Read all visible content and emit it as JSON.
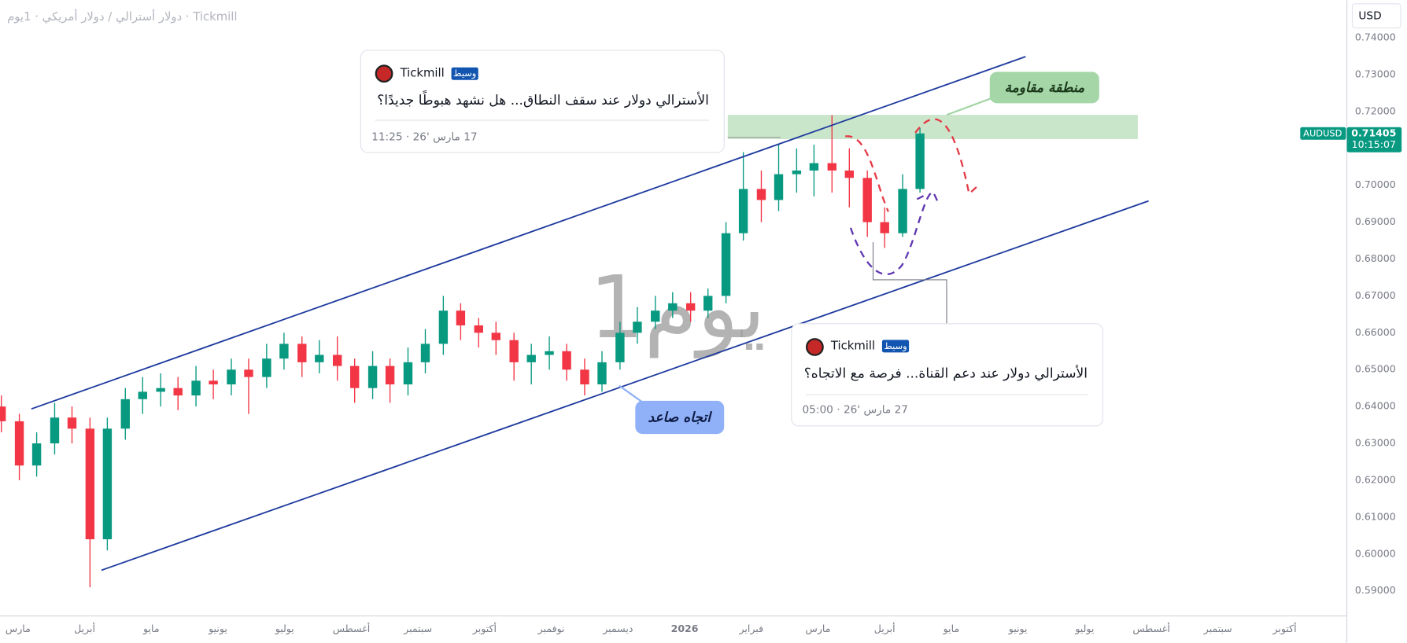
{
  "header": {
    "title": "دولار أسترالي / دولار أمريكي · 1يوم · Tickmill",
    "currency": "USD"
  },
  "chart_data": {
    "type": "candlestick",
    "symbol": "AUDUSD",
    "countdown": "10:15:07",
    "watermark": "1يوم",
    "up_color": "#089981",
    "down_color": "#f23645",
    "x": [
      -0.25,
      0.02,
      0.28,
      0.55,
      0.81,
      1.08,
      1.34,
      1.61,
      1.87,
      2.14,
      2.4,
      2.67,
      2.93,
      3.2,
      3.46,
      3.73,
      3.99,
      4.26,
      4.52,
      4.79,
      5.05,
      5.32,
      5.58,
      5.85,
      6.11,
      6.38,
      6.64,
      6.91,
      7.17,
      7.44,
      7.7,
      7.97,
      8.23,
      8.5,
      8.76,
      9.03,
      9.29,
      9.56,
      9.82,
      10.09,
      10.35,
      10.62,
      10.88,
      11.15,
      11.41,
      11.68,
      11.94,
      12.21,
      12.47,
      12.74,
      13.0,
      13.27,
      13.53
    ],
    "open": [
      0.64,
      0.636,
      0.624,
      0.63,
      0.637,
      0.634,
      0.604,
      0.634,
      0.642,
      0.644,
      0.645,
      0.643,
      0.647,
      0.646,
      0.65,
      0.648,
      0.653,
      0.657,
      0.652,
      0.654,
      0.651,
      0.645,
      0.651,
      0.646,
      0.652,
      0.657,
      0.666,
      0.662,
      0.66,
      0.658,
      0.652,
      0.654,
      0.655,
      0.65,
      0.646,
      0.652,
      0.66,
      0.663,
      0.666,
      0.668,
      0.666,
      0.67,
      0.687,
      0.699,
      0.696,
      0.703,
      0.704,
      0.706,
      0.704,
      0.702,
      0.69,
      0.687,
      0.699
    ],
    "high": [
      0.643,
      0.638,
      0.633,
      0.641,
      0.64,
      0.637,
      0.637,
      0.645,
      0.648,
      0.649,
      0.648,
      0.651,
      0.65,
      0.653,
      0.653,
      0.657,
      0.66,
      0.659,
      0.658,
      0.659,
      0.653,
      0.655,
      0.653,
      0.656,
      0.661,
      0.67,
      0.668,
      0.664,
      0.663,
      0.66,
      0.657,
      0.659,
      0.657,
      0.653,
      0.655,
      0.663,
      0.667,
      0.67,
      0.671,
      0.671,
      0.672,
      0.69,
      0.709,
      0.704,
      0.711,
      0.71,
      0.711,
      0.719,
      0.71,
      0.704,
      0.694,
      0.703,
      0.7155
    ],
    "low": [
      0.633,
      0.62,
      0.621,
      0.627,
      0.63,
      0.591,
      0.601,
      0.631,
      0.638,
      0.64,
      0.639,
      0.64,
      0.642,
      0.643,
      0.638,
      0.645,
      0.65,
      0.648,
      0.649,
      0.647,
      0.641,
      0.642,
      0.641,
      0.643,
      0.649,
      0.654,
      0.658,
      0.656,
      0.654,
      0.647,
      0.646,
      0.65,
      0.647,
      0.643,
      0.644,
      0.65,
      0.657,
      0.661,
      0.664,
      0.663,
      0.664,
      0.668,
      0.685,
      0.69,
      0.693,
      0.698,
      0.697,
      0.698,
      0.694,
      0.686,
      0.683,
      0.686,
      0.698
    ],
    "close": [
      0.636,
      0.624,
      0.63,
      0.637,
      0.634,
      0.604,
      0.634,
      0.642,
      0.644,
      0.645,
      0.643,
      0.647,
      0.646,
      0.65,
      0.648,
      0.653,
      0.657,
      0.652,
      0.654,
      0.651,
      0.645,
      0.651,
      0.646,
      0.652,
      0.657,
      0.666,
      0.662,
      0.66,
      0.658,
      0.652,
      0.654,
      0.655,
      0.65,
      0.646,
      0.652,
      0.66,
      0.663,
      0.666,
      0.668,
      0.666,
      0.67,
      0.687,
      0.699,
      0.696,
      0.703,
      0.704,
      0.706,
      0.704,
      0.702,
      0.69,
      0.687,
      0.699,
      0.71405
    ],
    "xlim": [
      -0.27,
      19.92
    ],
    "xticks": [
      {
        "value": 0,
        "label": "مارس"
      },
      {
        "value": 1,
        "label": "أبريل"
      },
      {
        "value": 2,
        "label": "مايو"
      },
      {
        "value": 3,
        "label": "يونيو"
      },
      {
        "value": 4,
        "label": "يوليو"
      },
      {
        "value": 5,
        "label": "أغسطس"
      },
      {
        "value": 6,
        "label": "سبتمبر"
      },
      {
        "value": 7,
        "label": "أكتوبر"
      },
      {
        "value": 8,
        "label": "نوفمبر"
      },
      {
        "value": 9,
        "label": "ديسمبر"
      },
      {
        "value": 10,
        "label": "2026"
      },
      {
        "value": 11,
        "label": "فبراير"
      },
      {
        "value": 12,
        "label": "مارس"
      },
      {
        "value": 13,
        "label": "أبريل"
      },
      {
        "value": 14,
        "label": "مايو"
      },
      {
        "value": 15,
        "label": "يونيو"
      },
      {
        "value": 16,
        "label": "يوليو"
      },
      {
        "value": 17,
        "label": "أغسطس"
      },
      {
        "value": 18,
        "label": "سبتمبر"
      },
      {
        "value": 19,
        "label": "أكتوبر"
      }
    ],
    "ylim": [
      0.5832,
      0.7502
    ],
    "yticks": [
      {
        "value": 0.59,
        "label": "0.59000"
      },
      {
        "value": 0.6,
        "label": "0.60000"
      },
      {
        "value": 0.61,
        "label": "0.61000"
      },
      {
        "value": 0.62,
        "label": "0.62000"
      },
      {
        "value": 0.63,
        "label": "0.63000"
      },
      {
        "value": 0.64,
        "label": "0.64000"
      },
      {
        "value": 0.65,
        "label": "0.65000"
      },
      {
        "value": 0.66,
        "label": "0.66000"
      },
      {
        "value": 0.67,
        "label": "0.67000"
      },
      {
        "value": 0.68,
        "label": "0.68000"
      },
      {
        "value": 0.69,
        "label": "0.69000"
      },
      {
        "value": 0.7,
        "label": "0.70000"
      },
      {
        "value": 0.71,
        "label": "0.71000"
      },
      {
        "value": 0.72,
        "label": "0.72000"
      },
      {
        "value": 0.73,
        "label": "0.73000"
      },
      {
        "value": 0.74,
        "label": "0.74000"
      }
    ]
  },
  "annotations": [
    {
      "text": "منطقة مقاومة"
    },
    {
      "text": "اتجاه صاعد"
    }
  ],
  "ideas": [
    {
      "author": "Tickmill",
      "badge": "وسيط",
      "title": "الأسترالي دولار عند سقف النطاق... هل نشهد هبوطًا جديدًا؟",
      "date": "17 مارس '26 · 11:25"
    },
    {
      "author": "Tickmill",
      "badge": "وسيط",
      "title": "الأسترالي دولار عند دعم القناة... فرصة مع الاتجاه؟",
      "date": "27 مارس '26 · 05:00"
    }
  ]
}
